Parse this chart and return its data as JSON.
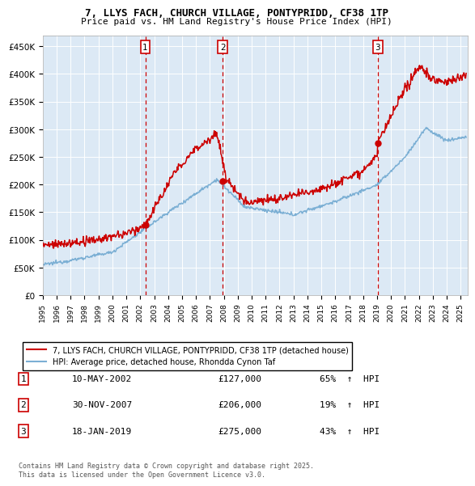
{
  "title": "7, LLYS FACH, CHURCH VILLAGE, PONTYPRIDD, CF38 1TP",
  "subtitle": "Price paid vs. HM Land Registry's House Price Index (HPI)",
  "ylim": [
    0,
    470000
  ],
  "yticks": [
    0,
    50000,
    100000,
    150000,
    200000,
    250000,
    300000,
    350000,
    400000,
    450000
  ],
  "ytick_labels": [
    "£0",
    "£50K",
    "£100K",
    "£150K",
    "£200K",
    "£250K",
    "£300K",
    "£350K",
    "£400K",
    "£450K"
  ],
  "x_start_year": 1995.0,
  "x_end_year": 2025.5,
  "transactions": [
    {
      "num": 1,
      "date_label": "10-MAY-2002",
      "year": 2002.36,
      "price": 127000,
      "pct": "65%",
      "dir": "↑"
    },
    {
      "num": 2,
      "date_label": "30-NOV-2007",
      "year": 2007.92,
      "price": 206000,
      "pct": "19%",
      "dir": "↑"
    },
    {
      "num": 3,
      "date_label": "18-JAN-2019",
      "year": 2019.05,
      "price": 275000,
      "pct": "43%",
      "dir": "↑"
    }
  ],
  "legend_property": "7, LLYS FACH, CHURCH VILLAGE, PONTYPRIDD, CF38 1TP (detached house)",
  "legend_hpi": "HPI: Average price, detached house, Rhondda Cynon Taf",
  "footnote": "Contains HM Land Registry data © Crown copyright and database right 2025.\nThis data is licensed under the Open Government Licence v3.0.",
  "property_color": "#cc0000",
  "hpi_color": "#7bafd4",
  "vline_color": "#cc0000",
  "box_color": "#cc0000",
  "background_color": "#ffffff",
  "plot_bg_color": "#dce9f5",
  "grid_color": "#ffffff",
  "title_fontsize": 9,
  "subtitle_fontsize": 8
}
